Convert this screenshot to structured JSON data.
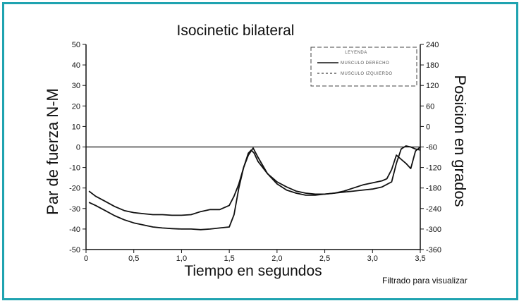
{
  "colors": {
    "frame": "#1fa3b0",
    "curve": "#111111",
    "axis": "#111111"
  },
  "footnote": "Filtrado para visualizar",
  "chart_data": {
    "type": "line",
    "title": "Isocinetic bilateral",
    "xlabel": "Tiempo en segundos",
    "ylabel": "Par de fuerza N-M",
    "y2label": "Posicion en grados",
    "xlim": [
      0,
      3.5
    ],
    "ylim": [
      -50,
      50
    ],
    "y2lim": [
      -360,
      240
    ],
    "x_ticks": [
      0,
      0.5,
      1.0,
      1.5,
      2.0,
      2.5,
      3.0,
      3.5
    ],
    "x_tick_labels": [
      "0",
      "0,5",
      "1,0",
      "1,5",
      "2,0",
      "2,5",
      "3,0",
      "3,5"
    ],
    "y_ticks": [
      -50,
      -40,
      -30,
      -20,
      -10,
      0,
      10,
      20,
      30,
      40,
      50
    ],
    "y_tick_labels": [
      "-50",
      "-40",
      "-30",
      "-20",
      "-10",
      "0",
      "10",
      "20",
      "30",
      "40",
      "50"
    ],
    "y2_ticks": [
      240,
      180,
      120,
      60,
      0,
      -60,
      -120,
      -180,
      -240,
      -300,
      -360
    ],
    "y2_tick_labels": [
      "240",
      "180",
      "120",
      "60",
      "0",
      "-60",
      "-120",
      "-180",
      "-240",
      "-300",
      "-360"
    ],
    "legend": {
      "title": "LEYENDA",
      "entries": [
        "MUSCULO DERECHO",
        "MUSCULO IZQUIERDO"
      ],
      "placement": "top-right"
    },
    "series": [
      {
        "name": "MUSCULO DERECHO",
        "x": [
          0.03,
          0.1,
          0.2,
          0.3,
          0.4,
          0.5,
          0.6,
          0.7,
          0.8,
          0.9,
          1.0,
          1.1,
          1.2,
          1.3,
          1.4,
          1.5,
          1.55,
          1.6,
          1.65,
          1.7,
          1.73,
          1.76,
          1.8,
          1.9,
          2.0,
          2.1,
          2.2,
          2.3,
          2.4,
          2.5,
          2.6,
          2.7,
          2.8,
          2.9,
          3.0,
          3.1,
          3.2,
          3.25,
          3.3,
          3.35,
          3.4,
          3.45,
          3.5
        ],
        "y": [
          -27,
          -28.5,
          -31,
          -33.5,
          -35.5,
          -37,
          -38,
          -39,
          -39.5,
          -39.8,
          -40,
          -40,
          -40.3,
          -40,
          -39.5,
          -39,
          -33,
          -20,
          -10,
          -3,
          -1.5,
          -3,
          -7,
          -13,
          -17,
          -19.5,
          -21.5,
          -22.5,
          -23,
          -23,
          -22.5,
          -22,
          -21.5,
          -21,
          -20.5,
          -19.5,
          -17,
          -8,
          -1,
          0.5,
          0,
          -1,
          -1.5
        ]
      },
      {
        "name": "MUSCULO IZQUIERDO",
        "x": [
          0.03,
          0.1,
          0.2,
          0.3,
          0.4,
          0.5,
          0.6,
          0.7,
          0.8,
          0.9,
          1.0,
          1.1,
          1.2,
          1.3,
          1.4,
          1.5,
          1.55,
          1.6,
          1.65,
          1.7,
          1.75,
          1.8,
          1.9,
          2.0,
          2.1,
          2.2,
          2.3,
          2.4,
          2.5,
          2.6,
          2.7,
          2.8,
          2.9,
          3.0,
          3.1,
          3.15,
          3.2,
          3.25,
          3.3,
          3.35,
          3.4,
          3.45,
          3.5
        ],
        "y": [
          -21.5,
          -24,
          -26.5,
          -29,
          -31,
          -32,
          -32.5,
          -33,
          -33,
          -33.3,
          -33.3,
          -33,
          -31.5,
          -30.5,
          -30.5,
          -28.5,
          -24,
          -18,
          -10,
          -4,
          -0.5,
          -5,
          -13,
          -18,
          -21,
          -22.5,
          -23.5,
          -23.5,
          -23,
          -22.5,
          -21.5,
          -20,
          -18.5,
          -17.5,
          -16.5,
          -15.5,
          -11,
          -4,
          -6,
          -8,
          -10.5,
          -2,
          0
        ]
      }
    ]
  }
}
